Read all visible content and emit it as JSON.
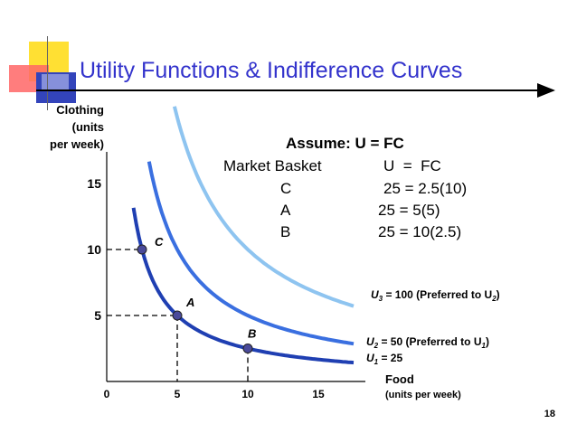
{
  "slide": {
    "title": "Utility Functions & Indifference Curves",
    "number": "18"
  },
  "assume": {
    "heading": "Assume: U = FC",
    "col1_header": "Market Basket",
    "col2_header": "U  =  FC",
    "rows": [
      {
        "basket": "C",
        "formula": "25 = 2.5(10)"
      },
      {
        "basket": "A",
        "formula": "25 = 5(5)"
      },
      {
        "basket": "B",
        "formula": "25 = 10(2.5)"
      }
    ]
  },
  "chart_data": {
    "type": "line",
    "xlabel": [
      "Food",
      "(units per week)"
    ],
    "ylabel": [
      "Clothing",
      "(units",
      "per week)"
    ],
    "x_ticks": [
      "0",
      "5",
      "10",
      "15"
    ],
    "y_ticks": [
      "5",
      "10",
      "15"
    ],
    "xlim": [
      0,
      18
    ],
    "ylim": [
      0,
      18
    ],
    "series": [
      {
        "name": "U1",
        "label_main": "U",
        "label_sub": "1",
        "label_rest": " = 25",
        "U": 25,
        "x_range": [
          1.9,
          17.5
        ],
        "color": "#1f3fb2"
      },
      {
        "name": "U2",
        "label_main": "U",
        "label_sub": "2",
        "label_rest": " = 50 (Preferred to U",
        "label_sub2": "1",
        "label_end": ")",
        "U": 50,
        "x_range": [
          3.0,
          17.5
        ],
        "color": "#3a6fe0"
      },
      {
        "name": "U3",
        "label_main": "U",
        "label_sub": "3",
        "label_rest": " = 100 (Preferred to U",
        "label_sub2": "2",
        "label_end": ")",
        "U": 100,
        "x_range": [
          4.8,
          17.5
        ],
        "color": "#8ec4f0"
      }
    ],
    "points": [
      {
        "name": "C",
        "x": 2.5,
        "y": 10
      },
      {
        "name": "A",
        "x": 5,
        "y": 5
      },
      {
        "name": "B",
        "x": 10,
        "y": 2.5
      }
    ]
  }
}
